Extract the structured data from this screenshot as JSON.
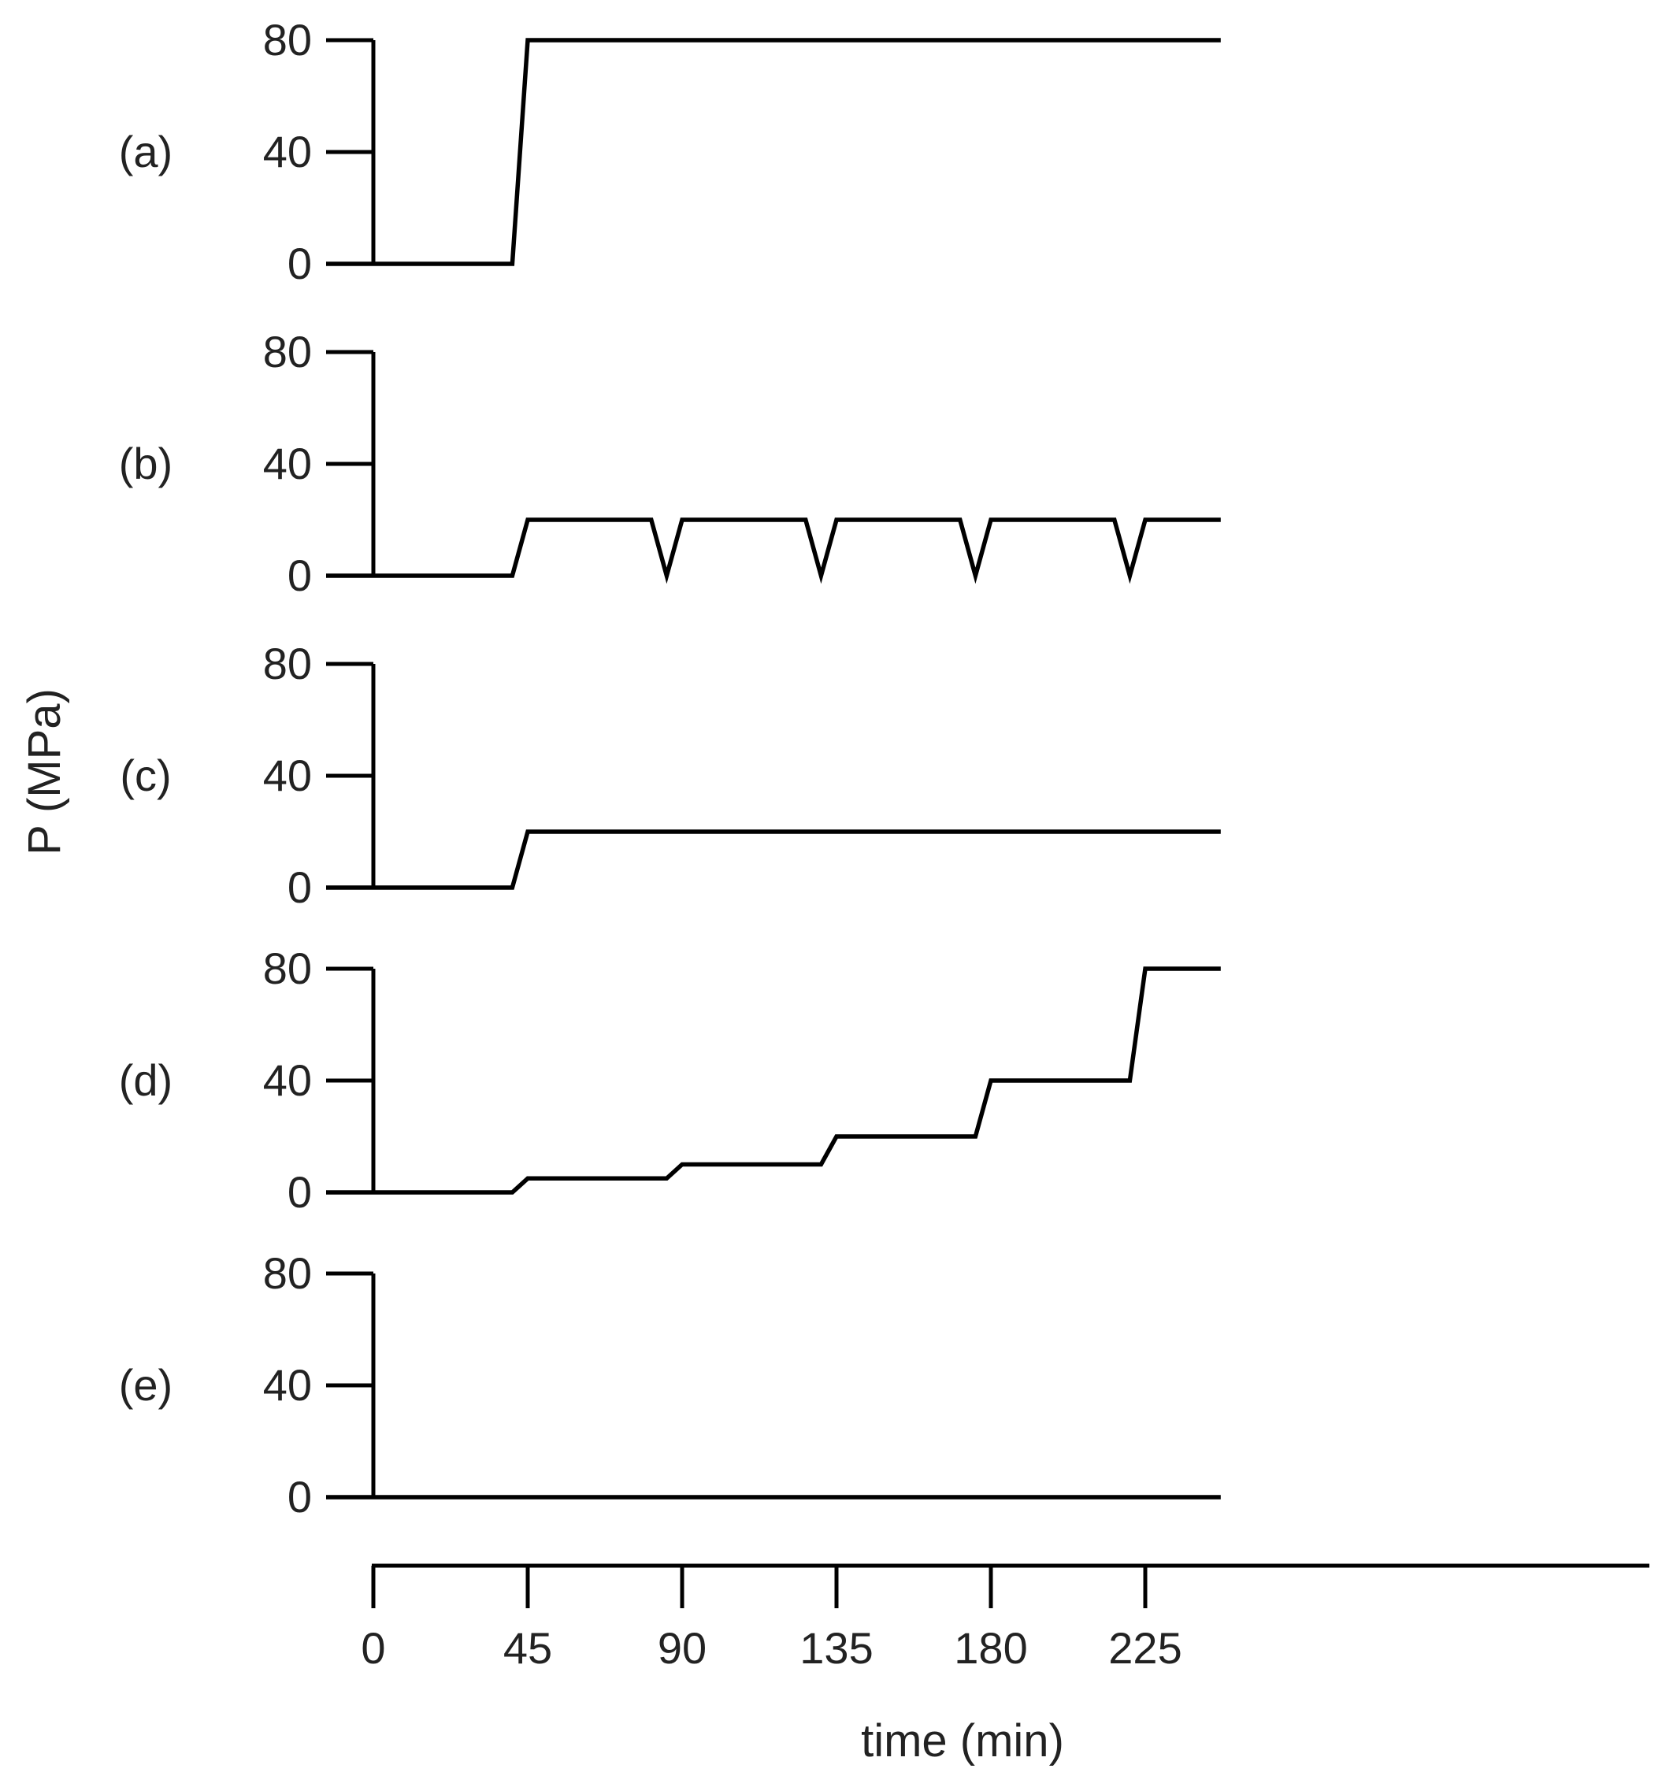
{
  "chart_data": {
    "type": "line",
    "ylabel": "P (MPa)",
    "xlabel": "time (min)",
    "xlim": [
      0,
      247
    ],
    "x_ticks": [
      "0",
      "45",
      "90",
      "135",
      "180",
      "225"
    ],
    "x_tick_values": [
      0,
      45,
      90,
      135,
      180,
      225
    ],
    "ylim": [
      0,
      80
    ],
    "y_ticks": [
      "0",
      "40",
      "80"
    ],
    "y_tick_values": [
      0,
      40,
      80
    ],
    "grid": false,
    "panels": [
      {
        "label": "(a)",
        "x": [
          0,
          40.5,
          45,
          247
        ],
        "y": [
          0,
          0,
          80,
          80
        ]
      },
      {
        "label": "(b)",
        "x": [
          0,
          40.5,
          45,
          81,
          85.5,
          90,
          126,
          130.5,
          135,
          171,
          175.5,
          180,
          216,
          220.5,
          225,
          247
        ],
        "y": [
          0,
          0,
          20,
          20,
          0,
          20,
          20,
          0,
          20,
          20,
          0,
          20,
          20,
          0,
          20,
          20
        ]
      },
      {
        "label": "(c)",
        "x": [
          0,
          40.5,
          45,
          247
        ],
        "y": [
          0,
          0,
          20,
          20
        ]
      },
      {
        "label": "(d)",
        "x": [
          0,
          40.5,
          45,
          85.5,
          90,
          130.5,
          135,
          175.5,
          180,
          220.5,
          225,
          247
        ],
        "y": [
          0,
          0,
          5,
          5,
          10,
          10,
          20,
          20,
          40,
          40,
          80,
          80
        ]
      },
      {
        "label": "(e)",
        "x": [
          0,
          247
        ],
        "y": [
          0,
          0
        ]
      }
    ]
  }
}
